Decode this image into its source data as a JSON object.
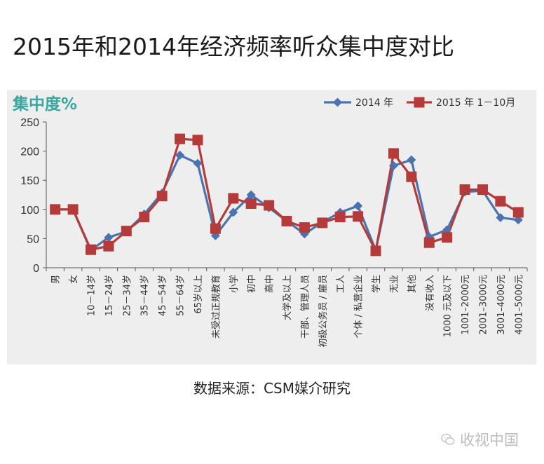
{
  "page": {
    "title": "2015年和2014年经济频率听众集中度对比",
    "source": "数据来源：CSM媒介研究",
    "watermark": "收视中国",
    "watermark_icon": "wechat-icon"
  },
  "chart_data": {
    "type": "line",
    "title": "",
    "ylabel": "集中度%",
    "xlabel": "",
    "ylim": [
      0,
      250
    ],
    "yticks": [
      0,
      50,
      100,
      150,
      200,
      250
    ],
    "grid": false,
    "legend_position": "top-right",
    "categories": [
      "男",
      "女",
      "10－14岁",
      "15－24岁",
      "25－34岁",
      "35－44岁",
      "45－54岁",
      "55－64岁",
      "65岁以上",
      "未受过正规教育",
      "小学",
      "初中",
      "高中",
      "大学及以上",
      "干部、管理人员",
      "初级公务员 / 雇员",
      "工人",
      "个体 / 私营企业",
      "学生",
      "无业",
      "其他",
      "没有收入",
      "1000 元及以下",
      "1001–2000元",
      "2001–3000元",
      "3001–4000元",
      "4001–5000元"
    ],
    "series": [
      {
        "name": "2014 年",
        "color": "#4a73b0",
        "marker": "diamond",
        "values": [
          100,
          100,
          30,
          52,
          62,
          92,
          128,
          193,
          179,
          55,
          95,
          125,
          103,
          80,
          58,
          78,
          95,
          106,
          30,
          175,
          185,
          53,
          65,
          130,
          132,
          86,
          82
        ]
      },
      {
        "name": "2015 年 1－10月",
        "color": "#b53a3a",
        "marker": "square",
        "values": [
          100,
          100,
          31,
          37,
          63,
          87,
          123,
          221,
          219,
          67,
          119,
          110,
          107,
          80,
          69,
          77,
          87,
          88,
          29,
          196,
          156,
          43,
          52,
          134,
          134,
          114,
          95
        ]
      }
    ]
  }
}
